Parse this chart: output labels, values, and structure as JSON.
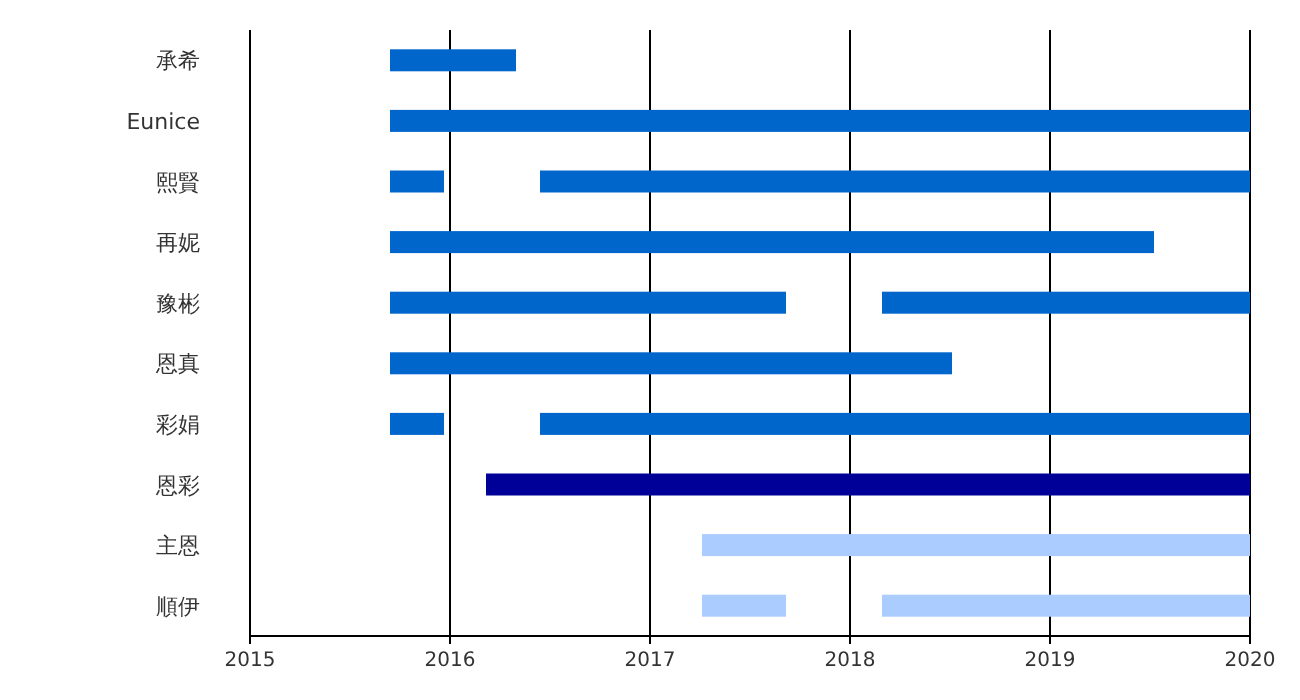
{
  "chart_data": {
    "type": "bar",
    "orientation": "horizontal",
    "categories": [
      "承希",
      "Eunice",
      "熙賢",
      "再妮",
      "豫彬",
      "恩真",
      "彩娟",
      "恩彩",
      "主恩",
      "順伊"
    ],
    "series": [
      {
        "base": [
          2015.7,
          2015.7,
          2015.7,
          2015.7,
          2015.7,
          2015.7,
          2015.7,
          2016.18,
          2017.26,
          2017.26
        ],
        "values": [
          0.63,
          4.3,
          0.27,
          3.82,
          1.98,
          2.81,
          0.27,
          3.82,
          2.74,
          0.42
        ],
        "colors": [
          "#0066cc",
          "#0066cc",
          "#0066cc",
          "#0066cc",
          "#0066cc",
          "#0066cc",
          "#0066cc",
          "#000099",
          "#aaccff",
          "#aaccff"
        ]
      },
      {
        "base": [
          null,
          null,
          2016.45,
          null,
          2018.16,
          null,
          2016.45,
          null,
          null,
          2018.16
        ],
        "values": [
          null,
          null,
          3.55,
          null,
          1.84,
          null,
          3.55,
          null,
          null,
          1.84
        ],
        "colors": [
          null,
          null,
          "#0066cc",
          null,
          "#0066cc",
          null,
          "#0066cc",
          null,
          null,
          "#aaccff"
        ]
      }
    ],
    "xlim": [
      2015,
      2020
    ],
    "xticks": [
      2015,
      2016,
      2017,
      2018,
      2019,
      2020
    ],
    "grid": "x"
  }
}
